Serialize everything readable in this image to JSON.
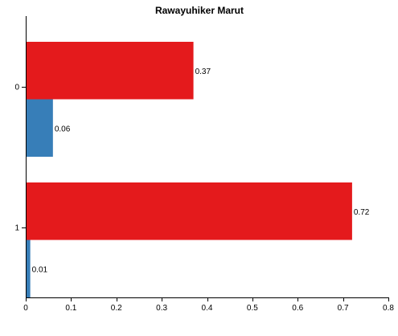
{
  "chart_data": {
    "type": "bar",
    "orientation": "horizontal",
    "title": "Rawayuhiker Marut",
    "xlabel": "",
    "ylabel": "",
    "categories": [
      "0",
      "1"
    ],
    "series": [
      {
        "color": "#e41a1c",
        "values": [
          0.37,
          0.72
        ]
      },
      {
        "color": "#377eb8",
        "values": [
          0.06,
          0.01
        ]
      }
    ],
    "data_labels": [
      [
        "0.37",
        "0.72"
      ],
      [
        "0.06",
        "0.01"
      ]
    ],
    "xlim": [
      0,
      0.8
    ],
    "x_ticks": [
      0,
      0.1,
      0.2,
      0.3,
      0.4,
      0.5,
      0.6,
      0.7,
      0.8
    ],
    "x_tick_labels": [
      "0",
      "0.1",
      "0.2",
      "0.3",
      "0.4",
      "0.5",
      "0.6",
      "0.7",
      "0.8"
    ],
    "grid": false,
    "legend": "none"
  }
}
